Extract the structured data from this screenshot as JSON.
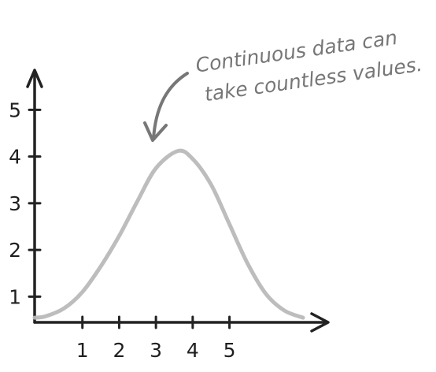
{
  "chart_data": {
    "type": "line",
    "title": "",
    "xlabel": "",
    "ylabel": "",
    "x_ticks": [
      "1",
      "2",
      "3",
      "4",
      "5"
    ],
    "y_ticks": [
      "1",
      "2",
      "3",
      "4",
      "5"
    ],
    "xlim": [
      -0.3,
      7.6
    ],
    "ylim": [
      0.45,
      5.8
    ],
    "grid": false,
    "legend": "none",
    "curve_color": "#b9b9b9",
    "axis_color": "#222222",
    "annotation_color": "#777777",
    "series": [
      {
        "x": [
          -0.3,
          0.0,
          0.5,
          1.0,
          1.5,
          2.0,
          2.5,
          3.0,
          3.6,
          4.0,
          4.5,
          5.0,
          5.5,
          6.0,
          6.5,
          7.0
        ],
        "values": [
          0.55,
          0.58,
          0.75,
          1.1,
          1.65,
          2.3,
          3.05,
          3.75,
          4.12,
          3.95,
          3.4,
          2.55,
          1.7,
          1.05,
          0.7,
          0.55
        ]
      }
    ],
    "annotation": {
      "lines": [
        "Continuous data can",
        "take countless values."
      ]
    }
  }
}
